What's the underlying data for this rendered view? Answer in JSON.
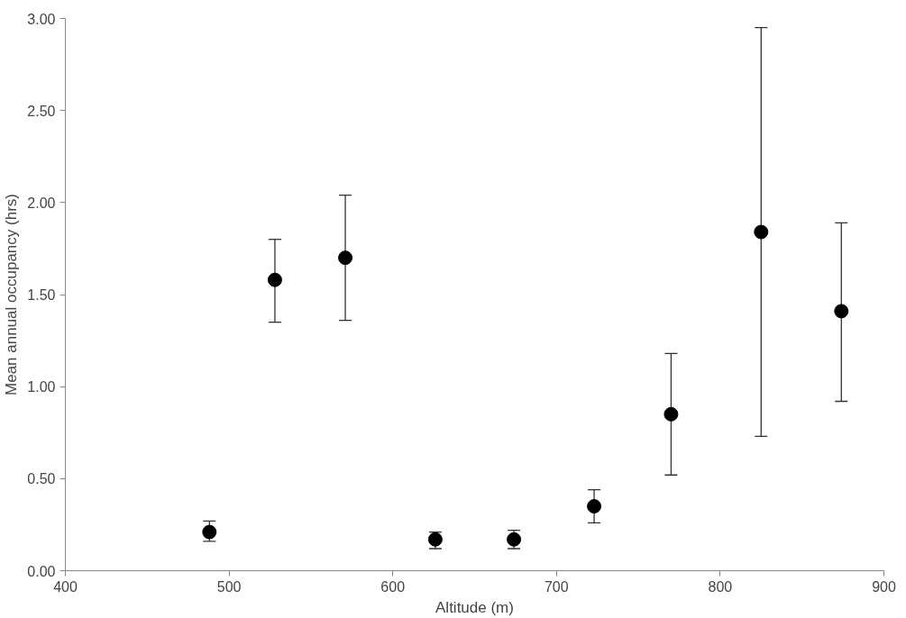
{
  "chart_data": {
    "type": "scatter",
    "xlabel": "Altitude (m)",
    "ylabel": "Mean annual occupancy (hrs)",
    "x": [
      488,
      528,
      571,
      626,
      674,
      723,
      770,
      825,
      874
    ],
    "values": [
      0.21,
      1.58,
      1.7,
      0.17,
      0.17,
      0.35,
      0.85,
      1.84,
      1.41
    ],
    "errors": [
      [
        0.16,
        0.27
      ],
      [
        1.35,
        1.8
      ],
      [
        1.36,
        2.04
      ],
      [
        0.12,
        0.21
      ],
      [
        0.12,
        0.22
      ],
      [
        0.26,
        0.44
      ],
      [
        0.52,
        1.18
      ],
      [
        0.73,
        2.95
      ],
      [
        0.92,
        1.89
      ]
    ],
    "color": "#000000",
    "marker": "circle",
    "grid": false,
    "legend": false,
    "xlim": [
      400,
      900
    ],
    "xticks": [
      400,
      500,
      600,
      700,
      800,
      900
    ],
    "ylim": [
      0,
      3
    ],
    "yticks": [
      {
        "value": 0,
        "label": "0.00"
      },
      {
        "value": 0.5,
        "label": "0.50"
      },
      {
        "value": 1,
        "label": "1.00"
      },
      {
        "value": 1.5,
        "label": "1.50"
      },
      {
        "value": 2,
        "label": "2.00"
      },
      {
        "value": 2.5,
        "label": "2.50"
      },
      {
        "value": 3,
        "label": "3.00"
      }
    ]
  }
}
